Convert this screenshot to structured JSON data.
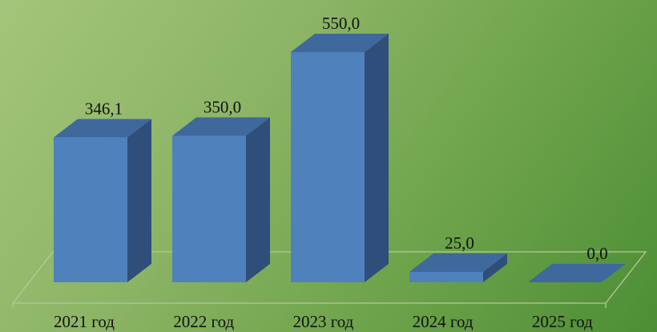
{
  "chart_data": {
    "type": "bar",
    "categories": [
      "2021 год",
      "2022 год",
      "2023 год",
      "2024 год",
      "2025 год"
    ],
    "values": [
      346.1,
      350.0,
      550.0,
      25.0,
      0.0
    ],
    "data_labels": [
      "346,1",
      "350,0",
      "550,0",
      "25,0",
      "0,0"
    ],
    "title": "",
    "xlabel": "",
    "ylabel": "",
    "ylim": [
      0,
      550
    ],
    "grid": false,
    "legend": "none",
    "style": "3d-column"
  },
  "colors": {
    "bar_front": "#4f81bd",
    "bar_top": "#3f689c",
    "bar_side": "#2f4f7a",
    "floor_line": "#b5c99a"
  }
}
